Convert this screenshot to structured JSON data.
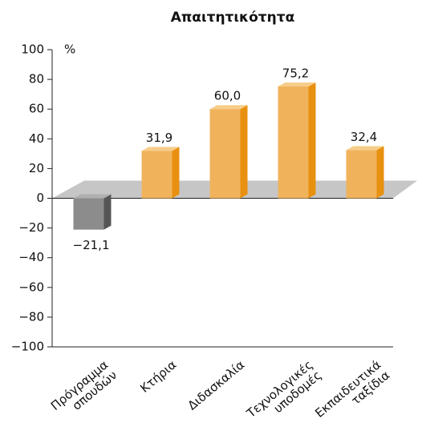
{
  "chart_data": {
    "type": "bar",
    "title": "Απαιτητικότητα",
    "y_label": "%",
    "categories": [
      [
        "Πρόγραμμα",
        "σπουδών"
      ],
      [
        "Κτήρια"
      ],
      [
        "Διδασκαλία"
      ],
      [
        "Τεχνολογικές",
        "υποδομές"
      ],
      [
        "Εκπαιδευτικά",
        "ταξίδια"
      ]
    ],
    "values": [
      -21.1,
      31.9,
      60.0,
      75.2,
      32.4
    ],
    "value_labels": [
      "−21,1",
      "31,9",
      "60,0",
      "75,2",
      "32,4"
    ],
    "colors": [
      "#8c8c8c",
      "#f0b35c",
      "#f0b35c",
      "#f0b35c",
      "#f0b35c"
    ],
    "ylim": [
      -100,
      100
    ],
    "yticks": [
      {
        "value": -100,
        "label": "−100"
      },
      {
        "value": -80,
        "label": "−80"
      },
      {
        "value": -60,
        "label": "−60"
      },
      {
        "value": -40,
        "label": "−40"
      },
      {
        "value": -20,
        "label": "−20"
      },
      0,
      20,
      40,
      60,
      80,
      100
    ]
  }
}
